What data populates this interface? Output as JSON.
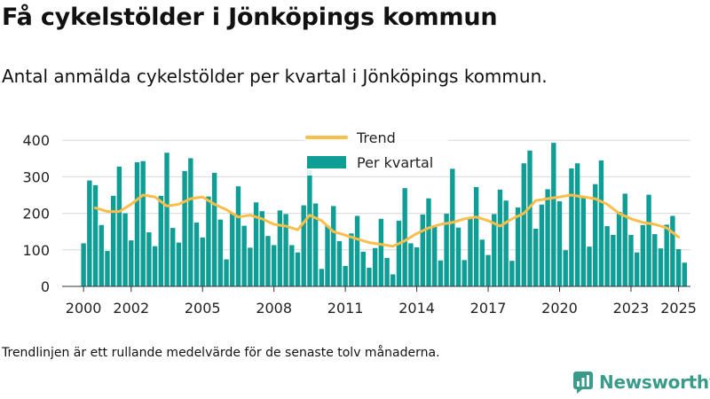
{
  "title": "Få cykelstölder i Jönköpings kommun",
  "subtitle": "Antal anmälda cykelstölder per kvartal i Jönköpings kommun.",
  "footnote": "Trendlinjen är ett rullande medelvärde för de senaste tolv månaderna.",
  "brand": "Newsworthy",
  "colors": {
    "bar": "#0f9e96",
    "trend": "#fbbe4a",
    "grid": "#d9d9d9",
    "text": "#222222"
  },
  "chart_data": {
    "type": "bar",
    "x_start": 2000.0,
    "x_step": 0.25,
    "xlim": [
      1999.1,
      2025.5
    ],
    "ylim": [
      0,
      420
    ],
    "yticks": [
      0,
      100,
      200,
      300,
      400
    ],
    "xticks": [
      2000,
      2002,
      2005,
      2008,
      2011,
      2014,
      2017,
      2020,
      2023,
      2025
    ],
    "grid": true,
    "legend_position": "top-center",
    "series": [
      {
        "name": "Per kvartal",
        "type": "bar",
        "values": [
          118,
          290,
          277,
          168,
          97,
          248,
          328,
          200,
          126,
          340,
          343,
          148,
          110,
          248,
          366,
          160,
          120,
          316,
          351,
          175,
          134,
          246,
          311,
          183,
          74,
          199,
          274,
          166,
          106,
          230,
          206,
          138,
          113,
          208,
          198,
          113,
          93,
          222,
          318,
          227,
          48,
          166,
          220,
          124,
          56,
          145,
          193,
          95,
          51,
          105,
          185,
          78,
          33,
          180,
          269,
          118,
          107,
          197,
          241,
          163,
          71,
          199,
          322,
          161,
          72,
          188,
          272,
          128,
          86,
          198,
          265,
          235,
          70,
          216,
          337,
          372,
          158,
          224,
          266,
          393,
          233,
          99,
          323,
          337,
          247,
          109,
          280,
          345,
          165,
          141,
          204,
          254,
          141,
          93,
          168,
          251,
          143,
          104,
          169,
          193,
          102,
          65
        ]
      },
      {
        "name": "Trend",
        "type": "line",
        "x": [
          2000.5,
          2001.0,
          2001.5,
          2002.0,
          2002.5,
          2003.0,
          2003.5,
          2004.0,
          2004.5,
          2005.0,
          2005.5,
          2006.0,
          2006.5,
          2007.0,
          2007.5,
          2008.0,
          2008.5,
          2009.0,
          2009.5,
          2010.0,
          2010.5,
          2011.0,
          2011.5,
          2012.0,
          2012.5,
          2013.0,
          2013.5,
          2014.0,
          2014.5,
          2015.0,
          2015.5,
          2016.0,
          2016.5,
          2017.0,
          2017.5,
          2018.0,
          2018.5,
          2019.0,
          2019.5,
          2020.0,
          2020.5,
          2021.0,
          2021.5,
          2022.0,
          2022.5,
          2023.0,
          2023.5,
          2024.0,
          2024.5,
          2025.0
        ],
        "values": [
          215,
          205,
          205,
          225,
          250,
          245,
          220,
          225,
          240,
          245,
          225,
          210,
          190,
          195,
          185,
          170,
          165,
          155,
          195,
          180,
          150,
          140,
          130,
          120,
          115,
          110,
          125,
          145,
          160,
          170,
          175,
          185,
          190,
          180,
          165,
          185,
          200,
          235,
          240,
          245,
          250,
          245,
          240,
          225,
          200,
          185,
          175,
          170,
          160,
          135
        ]
      }
    ]
  }
}
